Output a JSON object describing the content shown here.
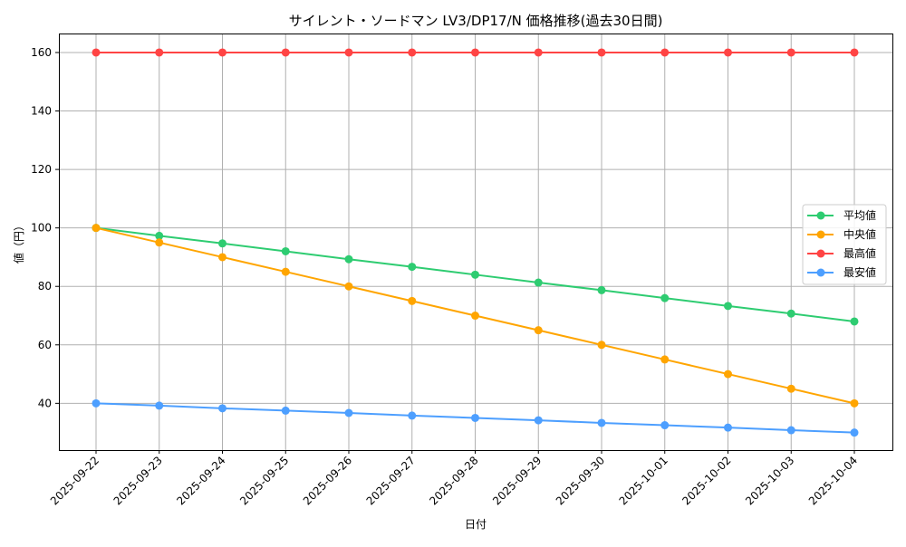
{
  "chart_data": {
    "type": "line",
    "title": "サイレント・ソードマン LV3/DP17/N 価格推移(過去30日間)",
    "xlabel": "日付",
    "ylabel": "値（円）",
    "categories": [
      "2025-09-22",
      "2025-09-23",
      "2025-09-24",
      "2025-09-25",
      "2025-09-26",
      "2025-09-27",
      "2025-09-28",
      "2025-09-29",
      "2025-09-30",
      "2025-10-01",
      "2025-10-02",
      "2025-10-03",
      "2025-10-04"
    ],
    "ylim": [
      24,
      166.5
    ],
    "yticks": [
      40,
      60,
      80,
      100,
      120,
      140,
      160
    ],
    "grid": true,
    "legend_position": "center-right",
    "series": [
      {
        "name": "平均値",
        "color": "#2ecc71",
        "values": [
          100,
          97.3,
          94.7,
          92.0,
          89.3,
          86.7,
          84.0,
          81.3,
          78.7,
          76.0,
          73.3,
          70.7,
          68.0
        ]
      },
      {
        "name": "中央値",
        "color": "#ffa500",
        "values": [
          100,
          95,
          90,
          85,
          80,
          75,
          70,
          65,
          60,
          55,
          50,
          45,
          40
        ]
      },
      {
        "name": "最高値",
        "color": "#ff4444",
        "values": [
          160,
          160,
          160,
          160,
          160,
          160,
          160,
          160,
          160,
          160,
          160,
          160,
          160
        ]
      },
      {
        "name": "最安値",
        "color": "#4d9fff",
        "values": [
          40,
          39.2,
          38.3,
          37.5,
          36.7,
          35.8,
          35.0,
          34.2,
          33.3,
          32.5,
          31.7,
          30.8,
          30.0
        ]
      }
    ]
  }
}
